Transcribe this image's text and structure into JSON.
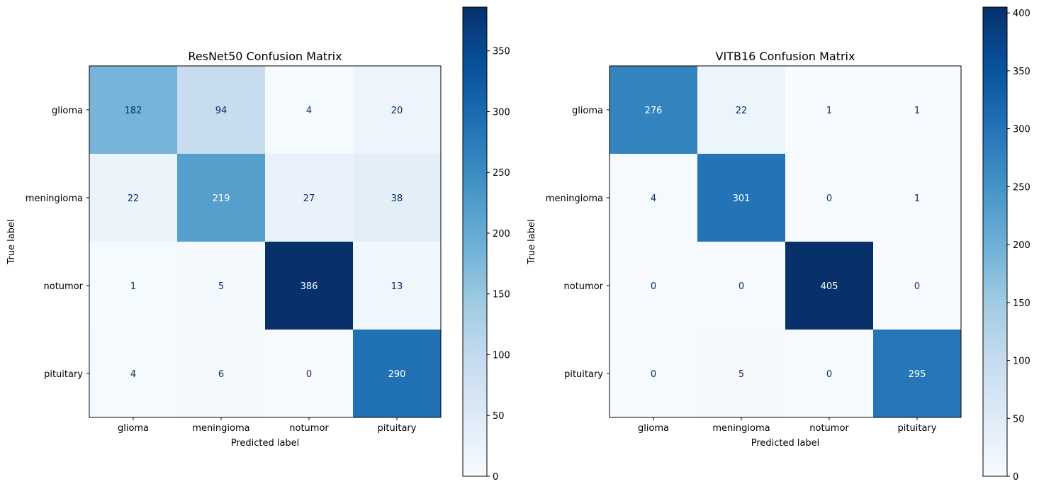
{
  "chart_data": [
    {
      "type": "heatmap",
      "title": "ResNet50 Confusion Matrix",
      "xlabel": "Predicted label",
      "ylabel": "True label",
      "x_categories": [
        "glioma",
        "meningioma",
        "notumor",
        "pituitary"
      ],
      "y_categories": [
        "glioma",
        "meningioma",
        "notumor",
        "pituitary"
      ],
      "values": [
        [
          182,
          94,
          4,
          20
        ],
        [
          22,
          219,
          27,
          38
        ],
        [
          1,
          5,
          386,
          13
        ],
        [
          4,
          6,
          0,
          290
        ]
      ],
      "colormap": "Blues",
      "color_range": [
        0,
        386
      ],
      "colorbar_ticks": [
        0,
        50,
        100,
        150,
        200,
        250,
        300,
        350
      ]
    },
    {
      "type": "heatmap",
      "title": "VITB16 Confusion Matrix",
      "xlabel": "Predicted label",
      "ylabel": "True label",
      "x_categories": [
        "glioma",
        "meningioma",
        "notumor",
        "pituitary"
      ],
      "y_categories": [
        "glioma",
        "meningioma",
        "notumor",
        "pituitary"
      ],
      "values": [
        [
          276,
          22,
          1,
          1
        ],
        [
          4,
          301,
          0,
          1
        ],
        [
          0,
          0,
          405,
          0
        ],
        [
          0,
          5,
          0,
          295
        ]
      ],
      "colormap": "Blues",
      "color_range": [
        0,
        405
      ],
      "colorbar_ticks": [
        0,
        50,
        100,
        150,
        200,
        250,
        300,
        350,
        400
      ]
    }
  ]
}
